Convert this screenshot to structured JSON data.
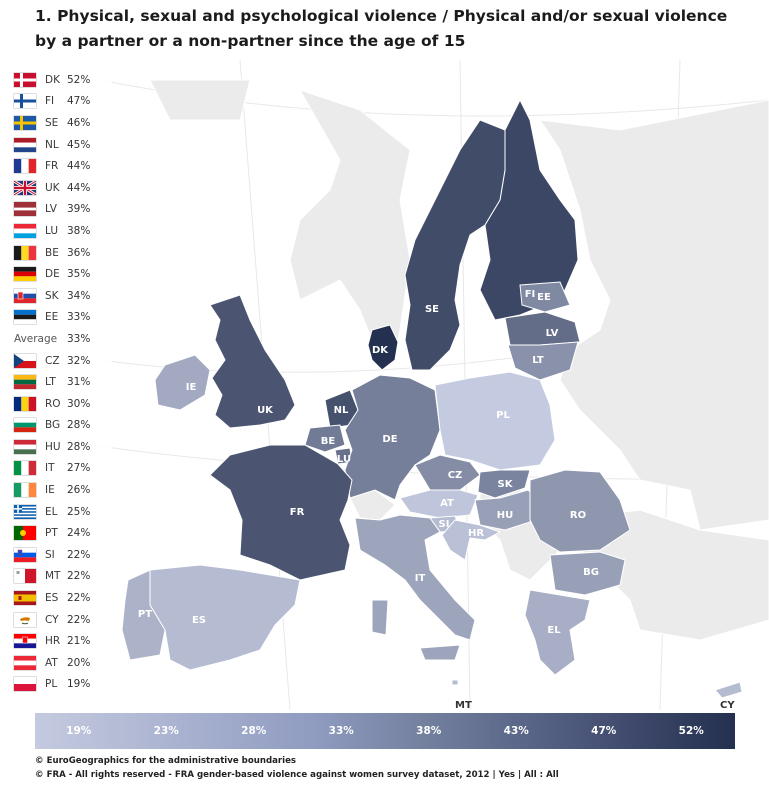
{
  "title": "1. Physical, sexual and psychological violence / Physical and/or sexual violence by a partner or a non-partner since the age of 15",
  "ranking": [
    {
      "code": "DK",
      "value": "52%",
      "flag": "dk"
    },
    {
      "code": "FI",
      "value": "47%",
      "flag": "fi"
    },
    {
      "code": "SE",
      "value": "46%",
      "flag": "se"
    },
    {
      "code": "NL",
      "value": "45%",
      "flag": "nl"
    },
    {
      "code": "FR",
      "value": "44%",
      "flag": "fr"
    },
    {
      "code": "UK",
      "value": "44%",
      "flag": "uk"
    },
    {
      "code": "LV",
      "value": "39%",
      "flag": "lv"
    },
    {
      "code": "LU",
      "value": "38%",
      "flag": "lu"
    },
    {
      "code": "BE",
      "value": "36%",
      "flag": "be"
    },
    {
      "code": "DE",
      "value": "35%",
      "flag": "de"
    },
    {
      "code": "SK",
      "value": "34%",
      "flag": "sk"
    },
    {
      "code": "EE",
      "value": "33%",
      "flag": "ee"
    },
    {
      "code": "Average",
      "value": "33%",
      "flag": "none"
    },
    {
      "code": "CZ",
      "value": "32%",
      "flag": "cz"
    },
    {
      "code": "LT",
      "value": "31%",
      "flag": "lt"
    },
    {
      "code": "RO",
      "value": "30%",
      "flag": "ro"
    },
    {
      "code": "BG",
      "value": "28%",
      "flag": "bg"
    },
    {
      "code": "HU",
      "value": "28%",
      "flag": "hu"
    },
    {
      "code": "IT",
      "value": "27%",
      "flag": "it"
    },
    {
      "code": "IE",
      "value": "26%",
      "flag": "ie"
    },
    {
      "code": "EL",
      "value": "25%",
      "flag": "el"
    },
    {
      "code": "PT",
      "value": "24%",
      "flag": "pt"
    },
    {
      "code": "SI",
      "value": "22%",
      "flag": "si"
    },
    {
      "code": "MT",
      "value": "22%",
      "flag": "mt"
    },
    {
      "code": "ES",
      "value": "22%",
      "flag": "es"
    },
    {
      "code": "CY",
      "value": "22%",
      "flag": "cy"
    },
    {
      "code": "HR",
      "value": "21%",
      "flag": "hr"
    },
    {
      "code": "AT",
      "value": "20%",
      "flag": "at"
    },
    {
      "code": "PL",
      "value": "19%",
      "flag": "pl"
    }
  ],
  "map_labels": {
    "SE": "SE",
    "FI": "FI",
    "EE": "EE",
    "LV": "LV",
    "LT": "LT",
    "DK": "DK",
    "IE": "IE",
    "UK": "UK",
    "NL": "NL",
    "BE": "BE",
    "LU": "LU",
    "DE": "DE",
    "PL": "PL",
    "CZ": "CZ",
    "SK": "SK",
    "AT": "AT",
    "HU": "HU",
    "SI": "SI",
    "HR": "HR",
    "RO": "RO",
    "BG": "BG",
    "FR": "FR",
    "IT": "IT",
    "PT": "PT",
    "ES": "ES",
    "EL": "EL"
  },
  "map_values": {
    "DK": 52,
    "FI": 47,
    "SE": 46,
    "NL": 45,
    "FR": 44,
    "UK": 44,
    "LV": 39,
    "LU": 38,
    "BE": 36,
    "DE": 35,
    "SK": 34,
    "EE": 33,
    "CZ": 32,
    "LT": 31,
    "RO": 30,
    "BG": 28,
    "HU": 28,
    "IT": 27,
    "IE": 26,
    "EL": 25,
    "PT": 24,
    "SI": 22,
    "MT": 22,
    "ES": 22,
    "CY": 22,
    "HR": 21,
    "AT": 20,
    "PL": 19
  },
  "callouts": {
    "mt": "MT",
    "cy": "CY"
  },
  "legend": [
    "19%",
    "23%",
    "28%",
    "33%",
    "38%",
    "43%",
    "47%",
    "52%"
  ],
  "colors": {
    "low": "#c4cadf",
    "high": "#24304f",
    "non_eu": "#ebebeb",
    "sea": "#ffffff"
  },
  "footer": {
    "line1": "© EuroGeographics for the administrative boundaries",
    "line2": "© FRA - All rights reserved - FRA gender-based violence against women survey dataset, 2012 | Yes | All : All"
  }
}
